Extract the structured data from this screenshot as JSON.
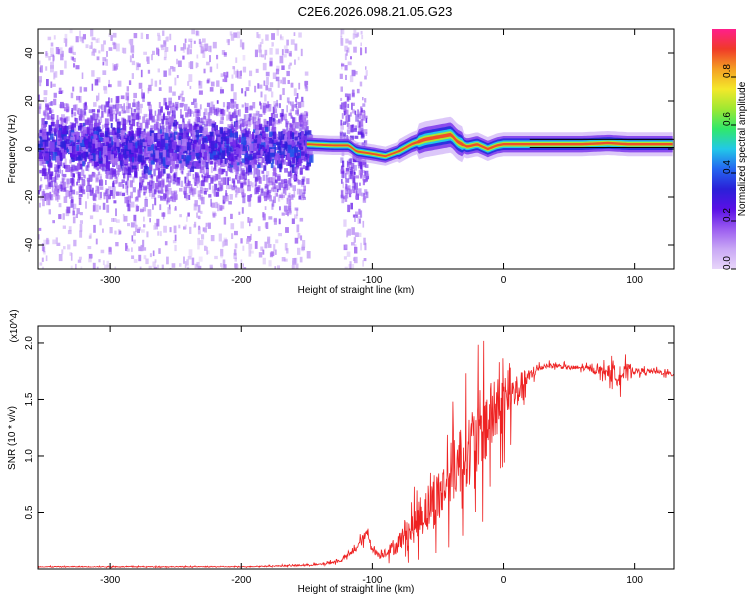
{
  "title": "C2E6.2026.098.21.05.G23",
  "colors": {
    "snr_line": "#ee2222",
    "frame": "#000000",
    "colormap": [
      "#e8d6fa",
      "#c9a8f5",
      "#9b5cf0",
      "#5a10e6",
      "#2a20d8",
      "#2466f0",
      "#22c8e8",
      "#30e86a",
      "#9ee832",
      "#f4e82a",
      "#f4a024",
      "#f03a28",
      "#ff1f8c"
    ]
  },
  "chart_data": [
    {
      "type": "heatmap",
      "name": "spectrogram",
      "xlabel": "Height of straight line (km)",
      "ylabel": "Frequency (Hz)",
      "xlim": [
        -355,
        130
      ],
      "ylim": [
        -50,
        50
      ],
      "xticks": [
        -300,
        -200,
        -100,
        0,
        100
      ],
      "yticks": [
        -40,
        -20,
        0,
        20,
        40
      ],
      "colorbar": {
        "label": "Normalized spectral amplitude",
        "range": [
          0,
          1
        ],
        "ticks": [
          0.0,
          0.2,
          0.4,
          0.6,
          0.8
        ]
      },
      "band_center_hz": [
        [
          -355,
          2
        ],
        [
          -300,
          2
        ],
        [
          -250,
          2
        ],
        [
          -200,
          2
        ],
        [
          -155,
          2
        ],
        [
          -150,
          2
        ],
        [
          -130,
          1.5
        ],
        [
          -118,
          1.5
        ],
        [
          -112,
          -1
        ],
        [
          -100,
          -2
        ],
        [
          -90,
          -3
        ],
        [
          -80,
          -1
        ],
        [
          -70,
          2
        ],
        [
          -60,
          4
        ],
        [
          -50,
          5
        ],
        [
          -40,
          6
        ],
        [
          -35,
          3
        ],
        [
          -28,
          1
        ],
        [
          -20,
          2
        ],
        [
          -12,
          0
        ],
        [
          -5,
          1.5
        ],
        [
          0,
          2
        ],
        [
          20,
          2
        ],
        [
          60,
          2
        ],
        [
          80,
          2.5
        ],
        [
          95,
          2
        ],
        [
          130,
          2
        ]
      ]
    },
    {
      "type": "line",
      "name": "snr",
      "xlabel": "Height of straight line (km)",
      "ylabel": "SNR (10 * v/v)",
      "y_multiplier": "(x10^4)",
      "xlim": [
        -355,
        130
      ],
      "ylim": [
        0,
        2.15
      ],
      "xticks": [
        -300,
        -200,
        -100,
        0,
        100
      ],
      "yticks": [
        0.5,
        1.0,
        1.5,
        2.0
      ],
      "series": [
        {
          "name": "SNR",
          "x": [
            -355,
            -300,
            -250,
            -200,
            -180,
            -160,
            -140,
            -125,
            -115,
            -108,
            -104,
            -100,
            -95,
            -90,
            -82,
            -76,
            -70,
            -64,
            -58,
            -52,
            -46,
            -40,
            -34,
            -28,
            -22,
            -18,
            -15,
            -12,
            -8,
            -4,
            0,
            4,
            8,
            12,
            16,
            20,
            24,
            28,
            32,
            40,
            50,
            60,
            70,
            80,
            85,
            88,
            92,
            96,
            100,
            110,
            120,
            130
          ],
          "values": [
            0.02,
            0.02,
            0.02,
            0.02,
            0.025,
            0.03,
            0.04,
            0.07,
            0.15,
            0.25,
            0.32,
            0.18,
            0.12,
            0.15,
            0.2,
            0.3,
            0.35,
            0.45,
            0.55,
            0.6,
            0.7,
            0.85,
            0.95,
            1.05,
            1.1,
            1.2,
            1.25,
            1.3,
            1.35,
            1.4,
            1.45,
            1.5,
            1.55,
            1.6,
            1.65,
            1.7,
            1.75,
            1.78,
            1.8,
            1.8,
            1.78,
            1.78,
            1.76,
            1.75,
            1.7,
            1.75,
            1.72,
            1.78,
            1.75,
            1.75,
            1.74,
            1.72
          ],
          "noise": [
            0.005,
            0.005,
            0.005,
            0.005,
            0.005,
            0.01,
            0.01,
            0.02,
            0.03,
            0.06,
            0.05,
            0.04,
            0.05,
            0.06,
            0.1,
            0.15,
            0.2,
            0.25,
            0.3,
            0.35,
            0.35,
            0.4,
            0.45,
            0.45,
            0.5,
            0.55,
            0.55,
            0.5,
            0.45,
            0.4,
            0.35,
            0.3,
            0.25,
            0.2,
            0.15,
            0.1,
            0.06,
            0.04,
            0.03,
            0.03,
            0.03,
            0.03,
            0.04,
            0.08,
            0.15,
            0.15,
            0.12,
            0.06,
            0.04,
            0.03,
            0.03,
            0.03
          ]
        }
      ]
    }
  ]
}
